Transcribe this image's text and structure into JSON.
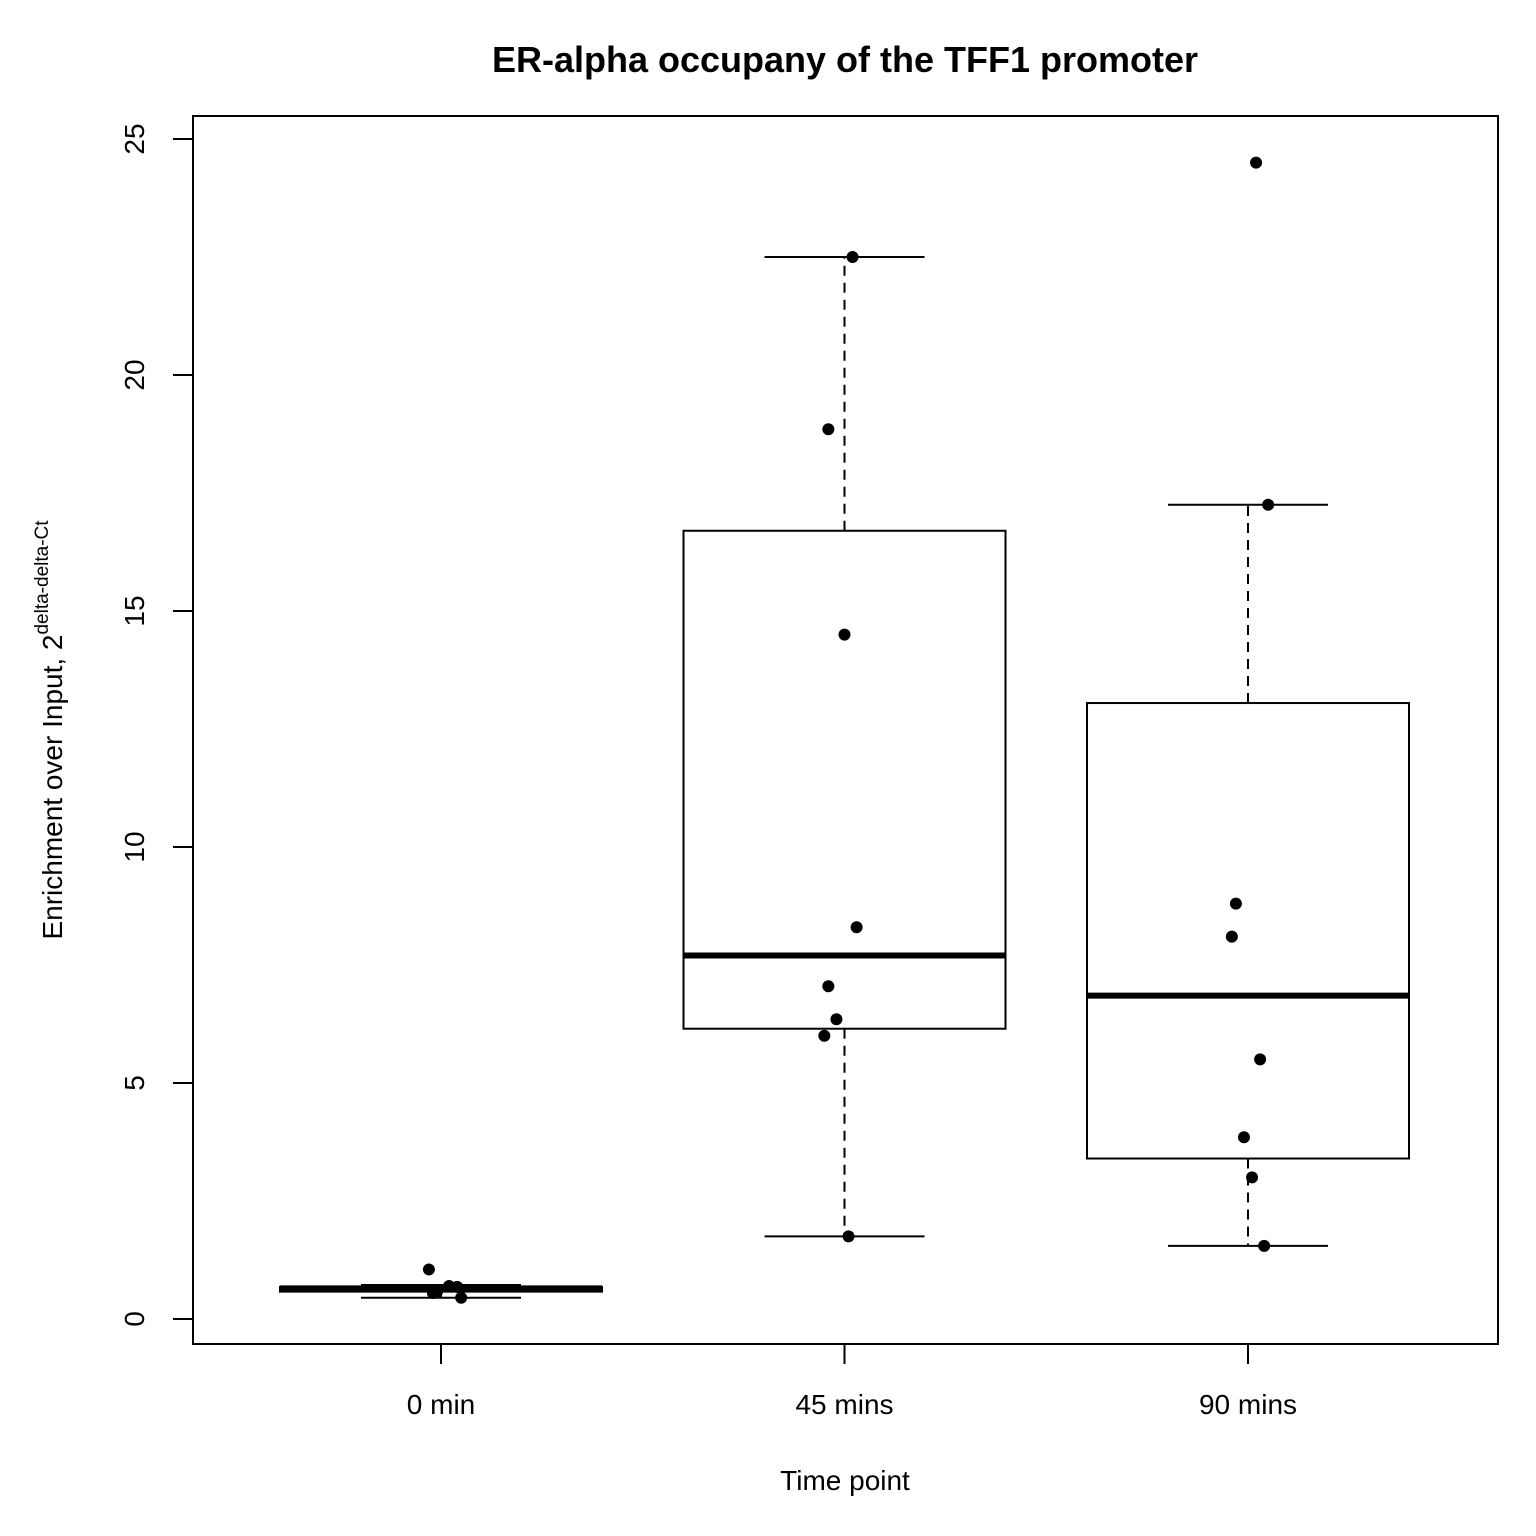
{
  "chart_data": {
    "type": "box",
    "title": "ER-alpha occupany of the TFF1 promoter",
    "xlabel": "Time point",
    "ylabel": "Enrichment over Input, 2",
    "ylabel_superscript": "delta-delta-Ct",
    "ylim": [
      -1,
      25.5
    ],
    "yticks": [
      0,
      5,
      10,
      15,
      20,
      25
    ],
    "categories": [
      "0 min",
      "45 mins",
      "90 mins"
    ],
    "boxes": [
      {
        "category": "0 min",
        "whisker_low": 0.45,
        "q1": 0.58,
        "median": 0.65,
        "q3": 0.68,
        "whisker_high": 0.72
      },
      {
        "category": "45 mins",
        "whisker_low": 1.75,
        "q1": 6.15,
        "median": 7.7,
        "q3": 16.7,
        "whisker_high": 22.5
      },
      {
        "category": "90 mins",
        "whisker_low": 1.55,
        "q1": 3.4,
        "median": 6.85,
        "q3": 13.05,
        "whisker_high": 17.25
      }
    ],
    "points": [
      {
        "category": "0 min",
        "jitter": -0.03,
        "y": 1.05
      },
      {
        "category": "0 min",
        "jitter": -0.01,
        "y": 0.58
      },
      {
        "category": "0 min",
        "jitter": 0.02,
        "y": 0.7
      },
      {
        "category": "0 min",
        "jitter": 0.04,
        "y": 0.68
      },
      {
        "category": "0 min",
        "jitter": 0.05,
        "y": 0.45
      },
      {
        "category": "0 min",
        "jitter": -0.02,
        "y": 0.55
      },
      {
        "category": "45 mins",
        "jitter": 0.02,
        "y": 22.5
      },
      {
        "category": "45 mins",
        "jitter": -0.04,
        "y": 18.85
      },
      {
        "category": "45 mins",
        "jitter": 0.0,
        "y": 14.5
      },
      {
        "category": "45 mins",
        "jitter": 0.03,
        "y": 8.3
      },
      {
        "category": "45 mins",
        "jitter": -0.04,
        "y": 7.05
      },
      {
        "category": "45 mins",
        "jitter": -0.02,
        "y": 6.35
      },
      {
        "category": "45 mins",
        "jitter": -0.05,
        "y": 6.0
      },
      {
        "category": "45 mins",
        "jitter": 0.01,
        "y": 1.75
      },
      {
        "category": "90 mins",
        "jitter": 0.02,
        "y": 24.5
      },
      {
        "category": "90 mins",
        "jitter": 0.05,
        "y": 17.25
      },
      {
        "category": "90 mins",
        "jitter": -0.03,
        "y": 8.8
      },
      {
        "category": "90 mins",
        "jitter": -0.04,
        "y": 8.1
      },
      {
        "category": "90 mins",
        "jitter": 0.03,
        "y": 5.5
      },
      {
        "category": "90 mins",
        "jitter": -0.01,
        "y": 3.85
      },
      {
        "category": "90 mins",
        "jitter": 0.01,
        "y": 3.0
      },
      {
        "category": "90 mins",
        "jitter": 0.04,
        "y": 1.55
      }
    ]
  }
}
